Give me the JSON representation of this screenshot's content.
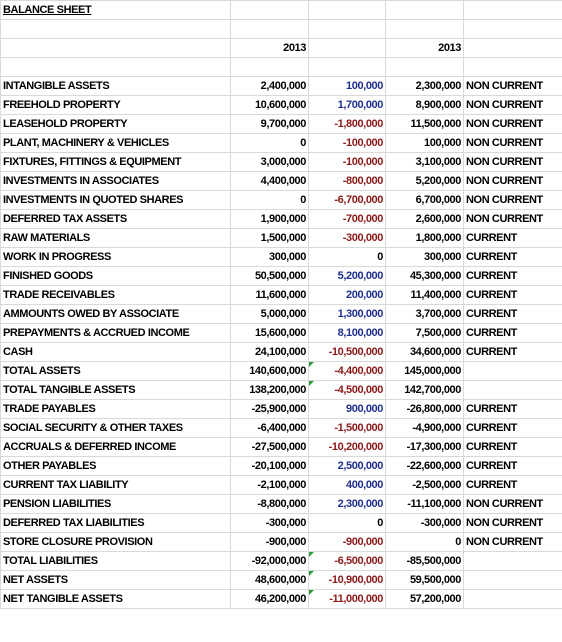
{
  "sheet": {
    "title": "BALANCE SHEET",
    "years": [
      "2013",
      "2013"
    ],
    "rows": [
      {
        "label": "INTANGIBLE ASSETS",
        "cells": [
          "2,400,000",
          "100,000",
          "2,300,000"
        ],
        "class": "NON CURRENT"
      },
      {
        "label": "FREEHOLD PROPERTY",
        "cells": [
          "10,600,000",
          "1,700,000",
          "8,900,000"
        ],
        "class": "NON CURRENT"
      },
      {
        "label": "LEASEHOLD PROPERTY",
        "cells": [
          "9,700,000",
          "-1,800,000",
          "11,500,000"
        ],
        "class": "NON CURRENT"
      },
      {
        "label": "PLANT, MACHINERY & VEHICLES",
        "cells": [
          "0",
          "-100,000",
          "100,000"
        ],
        "class": "NON CURRENT"
      },
      {
        "label": "FIXTURES, FITTINGS & EQUIPMENT",
        "cells": [
          "3,000,000",
          "-100,000",
          "3,100,000"
        ],
        "class": "NON CURRENT"
      },
      {
        "label": "INVESTMENTS IN ASSOCIATES",
        "cells": [
          "4,400,000",
          "-800,000",
          "5,200,000"
        ],
        "class": "NON CURRENT"
      },
      {
        "label": "INVESTMENTS IN QUOTED SHARES",
        "cells": [
          "0",
          "-6,700,000",
          "6,700,000"
        ],
        "class": "NON CURRENT"
      },
      {
        "label": "DEFERRED TAX ASSETS",
        "cells": [
          "1,900,000",
          "-700,000",
          "2,600,000"
        ],
        "class": "NON CURRENT"
      },
      {
        "label": "RAW MATERIALS",
        "cells": [
          "1,500,000",
          "-300,000",
          "1,800,000"
        ],
        "class": "CURRENT"
      },
      {
        "label": "WORK IN PROGRESS",
        "cells": [
          "300,000",
          "0",
          "300,000"
        ],
        "class": "CURRENT"
      },
      {
        "label": "FINISHED GOODS",
        "cells": [
          "50,500,000",
          "5,200,000",
          "45,300,000"
        ],
        "class": "CURRENT"
      },
      {
        "label": "TRADE RECEIVABLES",
        "cells": [
          "11,600,000",
          "200,000",
          "11,400,000"
        ],
        "class": "CURRENT"
      },
      {
        "label": "AMMOUNTS OWED BY ASSOCIATE",
        "cells": [
          "5,000,000",
          "1,300,000",
          "3,700,000"
        ],
        "class": "CURRENT"
      },
      {
        "label": "PREPAYMENTS & ACCRUED INCOME",
        "cells": [
          "15,600,000",
          "8,100,000",
          "7,500,000"
        ],
        "class": "CURRENT"
      },
      {
        "label": "CASH",
        "cells": [
          "24,100,000",
          "-10,500,000",
          "34,600,000"
        ],
        "class": "CURRENT"
      },
      {
        "label": "TOTAL ASSETS",
        "cells": [
          "140,600,000",
          "-4,400,000",
          "145,000,000"
        ]
      },
      {
        "label": "TOTAL TANGIBLE ASSETS",
        "cells": [
          "138,200,000",
          "-4,500,000",
          "142,700,000"
        ]
      },
      {
        "label": "TRADE PAYABLES",
        "cells": [
          "-25,900,000",
          "900,000",
          "-26,800,000"
        ],
        "class": "CURRENT"
      },
      {
        "label": "SOCIAL SECURITY & OTHER TAXES",
        "cells": [
          "-6,400,000",
          "-1,500,000",
          "-4,900,000"
        ],
        "class": "CURRENT"
      },
      {
        "label": "ACCRUALS & DEFERRED INCOME",
        "cells": [
          "-27,500,000",
          "-10,200,000",
          "-17,300,000"
        ],
        "class": "CURRENT"
      },
      {
        "label": "OTHER PAYABLES",
        "cells": [
          "-20,100,000",
          "2,500,000",
          "-22,600,000"
        ],
        "class": "CURRENT"
      },
      {
        "label": "CURRENT TAX LIABILITY",
        "cells": [
          "-2,100,000",
          "400,000",
          "-2,500,000"
        ],
        "class": "CURRENT"
      },
      {
        "label": "PENSION LIABILITIES",
        "cells": [
          "-8,800,000",
          "2,300,000",
          "-11,100,000"
        ],
        "class": "NON CURRENT"
      },
      {
        "label": "DEFERRED TAX LIABILITIES",
        "cells": [
          "-300,000",
          "0",
          "-300,000"
        ],
        "class": "NON CURRENT"
      },
      {
        "label": "STORE CLOSURE PROVISION",
        "cells": [
          "-900,000",
          "-900,000",
          "0"
        ],
        "class": "NON CURRENT"
      },
      {
        "label": "TOTAL LIABILITIES",
        "cells": [
          "-92,000,000",
          "-6,500,000",
          "-85,500,000"
        ]
      },
      {
        "label": "NET ASSETS",
        "cells": [
          "48,600,000",
          "-10,900,000",
          "59,500,000"
        ]
      },
      {
        "label": "NET TANGIBLE ASSETS",
        "cells": [
          "46,200,000",
          "-11,000,000",
          "57,200,000"
        ]
      }
    ]
  }
}
